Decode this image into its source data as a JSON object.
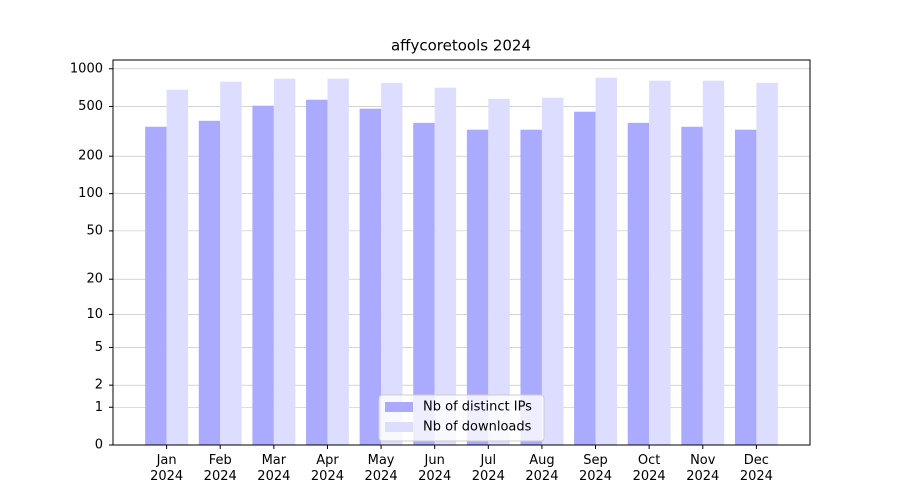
{
  "chart_data": {
    "type": "bar",
    "title": "affycoretools 2024",
    "categories": [
      "Jan\n2024",
      "Feb\n2024",
      "Mar\n2024",
      "Apr\n2024",
      "May\n2024",
      "Jun\n2024",
      "Jul\n2024",
      "Aug\n2024",
      "Sep\n2024",
      "Oct\n2024",
      "Nov\n2024",
      "Dec\n2024"
    ],
    "series": [
      {
        "name": "Nb of distinct IPs",
        "color": "#aaaaff",
        "values": [
          344,
          384,
          507,
          566,
          480,
          370,
          326,
          326,
          454,
          370,
          344,
          326
        ]
      },
      {
        "name": "Nb of downloads",
        "color": "#ddddff",
        "values": [
          680,
          788,
          833,
          833,
          773,
          706,
          576,
          587,
          849,
          803,
          803,
          773
        ]
      }
    ],
    "yscale": "log1p",
    "ylim": [
      0,
      1175
    ],
    "yticks": [
      0,
      1,
      2,
      5,
      10,
      20,
      50,
      100,
      200,
      500,
      1000
    ],
    "grid": true,
    "legend": "lower center"
  }
}
